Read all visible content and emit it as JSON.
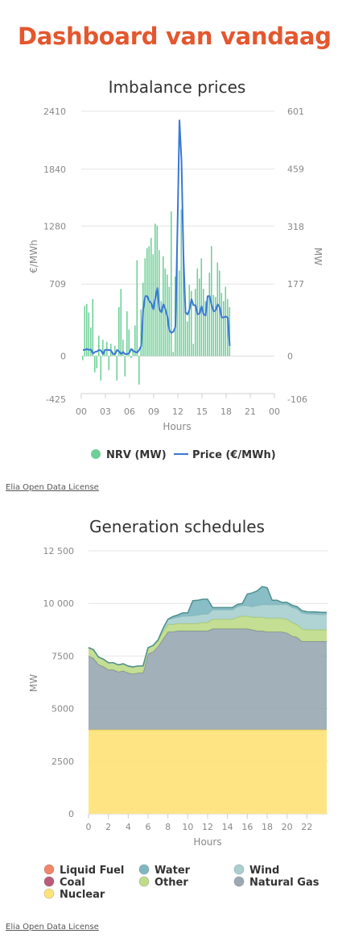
{
  "page": {
    "title": "Dashboard van vandaag",
    "license_1": "Elia Open Data License",
    "license_2": "Elia Open Data License"
  },
  "chart_data": [
    {
      "type": "bar+line",
      "title": "Imbalance prices",
      "xlabel": "Hours",
      "ylabel_left": "€/MWh",
      "ylabel_right": "MW",
      "x_ticks": [
        "00",
        "03",
        "06",
        "09",
        "12",
        "15",
        "18",
        "21",
        "00"
      ],
      "xlim_hours": [
        0,
        24
      ],
      "left_ticks": [
        "2410",
        "1840",
        "1280",
        "709",
        "0",
        "-425"
      ],
      "right_ticks": [
        "601",
        "459",
        "318",
        "177",
        "0",
        "-106"
      ],
      "right_ylim": [
        -106,
        601
      ],
      "left_ylim": [
        -425,
        2410
      ],
      "legend": [
        {
          "label": "NRV (MW)",
          "color": "#6fcf97"
        },
        {
          "label": "Price (€/MWh)",
          "color": "#3a78d6"
        }
      ],
      "series": [
        {
          "name": "NRV (MW)",
          "axis": "right",
          "kind": "bar",
          "color": "#6fcf97",
          "x": [
            0,
            0.25,
            0.5,
            0.75,
            1,
            1.25,
            1.5,
            1.75,
            2,
            2.25,
            2.5,
            2.75,
            3,
            3.25,
            3.5,
            3.75,
            4,
            4.25,
            4.5,
            4.75,
            5,
            5.25,
            5.5,
            5.75,
            6,
            6.25,
            6.5,
            6.75,
            7,
            7.25,
            7.5,
            7.75,
            8,
            8.25,
            8.5,
            8.75,
            9,
            9.25,
            9.5,
            9.75,
            10,
            10.25,
            10.5,
            10.75,
            11,
            11.25,
            11.5,
            11.75,
            12,
            12.25,
            12.5,
            12.75,
            13,
            13.25,
            13.5,
            13.75,
            14,
            14.25,
            14.5,
            14.75,
            15,
            15.25,
            15.5,
            15.75,
            16,
            16.25,
            16.5,
            16.75,
            17,
            17.25,
            17.5,
            17.75,
            18,
            18.25
          ],
          "values": [
            -10,
            123,
            128,
            107,
            70,
            140,
            -40,
            -30,
            50,
            -60,
            40,
            10,
            35,
            -35,
            30,
            10,
            25,
            -60,
            120,
            165,
            40,
            -50,
            110,
            65,
            -5,
            18,
            75,
            235,
            -70,
            115,
            180,
            240,
            265,
            270,
            290,
            250,
            325,
            320,
            260,
            135,
            245,
            215,
            200,
            170,
            355,
            10,
            195,
            300,
            210,
            360,
            240,
            135,
            85,
            175,
            160,
            30,
            165,
            215,
            190,
            240,
            165,
            135,
            145,
            205,
            270,
            150,
            145,
            230,
            210,
            155,
            135,
            170,
            140,
            120
          ],
          "ylim": [
            -106,
            601
          ]
        },
        {
          "name": "Price (€/MWh)",
          "axis": "left",
          "kind": "line",
          "color": "#3a78d6",
          "x": [
            0,
            0.25,
            0.5,
            0.75,
            1,
            1.25,
            1.5,
            1.75,
            2,
            2.25,
            2.5,
            2.75,
            3,
            3.25,
            3.5,
            3.75,
            4,
            4.25,
            4.5,
            4.75,
            5,
            5.25,
            5.5,
            5.75,
            6,
            6.25,
            6.5,
            6.75,
            7,
            7.25,
            7.5,
            7.75,
            8,
            8.25,
            8.5,
            8.75,
            9,
            9.25,
            9.5,
            9.75,
            10,
            10.25,
            10.5,
            10.75,
            11,
            11.25,
            11.5,
            11.75,
            12,
            12.25,
            12.5,
            12.75,
            13,
            13.25,
            13.5,
            13.75,
            14,
            14.25,
            14.5,
            14.75,
            15,
            15.25,
            15.5,
            15.75,
            16,
            16.25,
            16.5,
            16.75,
            17,
            17.25,
            17.5,
            17.75,
            18,
            18.25
          ],
          "values": [
            60,
            60,
            70,
            60,
            65,
            25,
            40,
            45,
            60,
            55,
            20,
            60,
            60,
            60,
            55,
            20,
            20,
            60,
            45,
            20,
            40,
            20,
            20,
            30,
            70,
            50,
            40,
            35,
            60,
            100,
            460,
            590,
            590,
            540,
            520,
            460,
            570,
            670,
            460,
            430,
            510,
            460,
            390,
            250,
            230,
            240,
            290,
            1240,
            2320,
            1930,
            980,
            430,
            410,
            460,
            560,
            500,
            500,
            410,
            420,
            490,
            410,
            400,
            590,
            590,
            500,
            440,
            450,
            510,
            480,
            380,
            380,
            390,
            380,
            100
          ]
        }
      ]
    },
    {
      "type": "area",
      "stacked": true,
      "title": "Generation schedules",
      "xlabel": "Hours",
      "ylabel": "MW",
      "x_ticks": [
        "0",
        "2",
        "4",
        "6",
        "8",
        "10",
        "12",
        "14",
        "16",
        "18",
        "20",
        "22"
      ],
      "y_ticks": [
        "12 500",
        "10 000",
        "7500",
        "5000",
        "2500",
        "0"
      ],
      "xlim": [
        0,
        24
      ],
      "ylim": [
        0,
        12500
      ],
      "legend": [
        {
          "label": "Liquid Fuel",
          "color": "#f0866a"
        },
        {
          "label": "Water",
          "color": "#7fb8c2"
        },
        {
          "label": "Wind",
          "color": "#a9cfcf"
        },
        {
          "label": "Coal",
          "color": "#b85b7c"
        },
        {
          "label": "Other",
          "color": "#bfdc8a"
        },
        {
          "label": "Natural Gas",
          "color": "#9aa9b4"
        },
        {
          "label": "Nuclear",
          "color": "#ffe27a"
        }
      ],
      "x": [
        0,
        0.5,
        1,
        1.5,
        2,
        2.5,
        3,
        3.5,
        4,
        4.5,
        5,
        5.5,
        6,
        6.5,
        7,
        7.5,
        8,
        8.5,
        9,
        9.5,
        10,
        10.5,
        11,
        11.5,
        12,
        12.5,
        13,
        13.5,
        14,
        14.5,
        15,
        15.5,
        16,
        16.5,
        17,
        17.5,
        18,
        18.5,
        19,
        19.5,
        20,
        20.5,
        21,
        21.5,
        22,
        22.5,
        23,
        23.5,
        24
      ],
      "series": [
        {
          "name": "Nuclear",
          "color": "#ffe27a",
          "values": [
            4000,
            4000,
            4000,
            4000,
            4000,
            4000,
            4000,
            4000,
            4000,
            4000,
            4000,
            4000,
            4000,
            4000,
            4000,
            4000,
            4000,
            4000,
            4000,
            4000,
            4000,
            4000,
            4000,
            4000,
            4000,
            4000,
            4000,
            4000,
            4000,
            4000,
            4000,
            4000,
            4000,
            4000,
            4000,
            4000,
            4000,
            4000,
            4000,
            4000,
            4000,
            4000,
            4000,
            4000,
            4000,
            4000,
            4000,
            4000,
            4000
          ]
        },
        {
          "name": "Natural Gas",
          "color": "#9aa9b4",
          "values": [
            3500,
            3400,
            3100,
            3000,
            2850,
            2850,
            2750,
            2800,
            2700,
            2650,
            2700,
            2700,
            3600,
            3700,
            3950,
            4300,
            4650,
            4650,
            4700,
            4700,
            4700,
            4700,
            4700,
            4700,
            4700,
            4800,
            4800,
            4800,
            4800,
            4800,
            4800,
            4800,
            4800,
            4750,
            4700,
            4700,
            4650,
            4650,
            4650,
            4650,
            4600,
            4450,
            4400,
            4200,
            4200,
            4200,
            4200,
            4200,
            4200
          ]
        },
        {
          "name": "Other",
          "color": "#bfdc8a",
          "values": [
            400,
            400,
            350,
            350,
            330,
            330,
            330,
            330,
            320,
            330,
            330,
            330,
            300,
            300,
            300,
            350,
            350,
            350,
            350,
            350,
            350,
            350,
            350,
            400,
            400,
            450,
            450,
            450,
            450,
            450,
            550,
            600,
            600,
            600,
            650,
            650,
            650,
            650,
            650,
            650,
            650,
            650,
            600,
            600,
            550,
            550,
            550,
            550,
            550
          ]
        },
        {
          "name": "Wind",
          "color": "#a9cfcf",
          "values": [
            0,
            0,
            0,
            0,
            0,
            0,
            0,
            0,
            0,
            0,
            0,
            0,
            0,
            0,
            0,
            150,
            250,
            300,
            300,
            350,
            350,
            380,
            400,
            400,
            400,
            450,
            450,
            450,
            450,
            450,
            500,
            500,
            500,
            500,
            550,
            600,
            650,
            650,
            650,
            650,
            700,
            720,
            750,
            760,
            760,
            750,
            740,
            730,
            730
          ]
        },
        {
          "name": "Water",
          "color": "#7fb8c2",
          "values": [
            0,
            0,
            0,
            0,
            0,
            0,
            0,
            0,
            0,
            0,
            0,
            0,
            0,
            0,
            0,
            0,
            0,
            80,
            100,
            150,
            150,
            700,
            700,
            700,
            700,
            100,
            100,
            100,
            100,
            100,
            100,
            100,
            550,
            650,
            700,
            850,
            800,
            200,
            200,
            100,
            100,
            100,
            100,
            100,
            100,
            100,
            100,
            100,
            100
          ]
        }
      ]
    }
  ]
}
